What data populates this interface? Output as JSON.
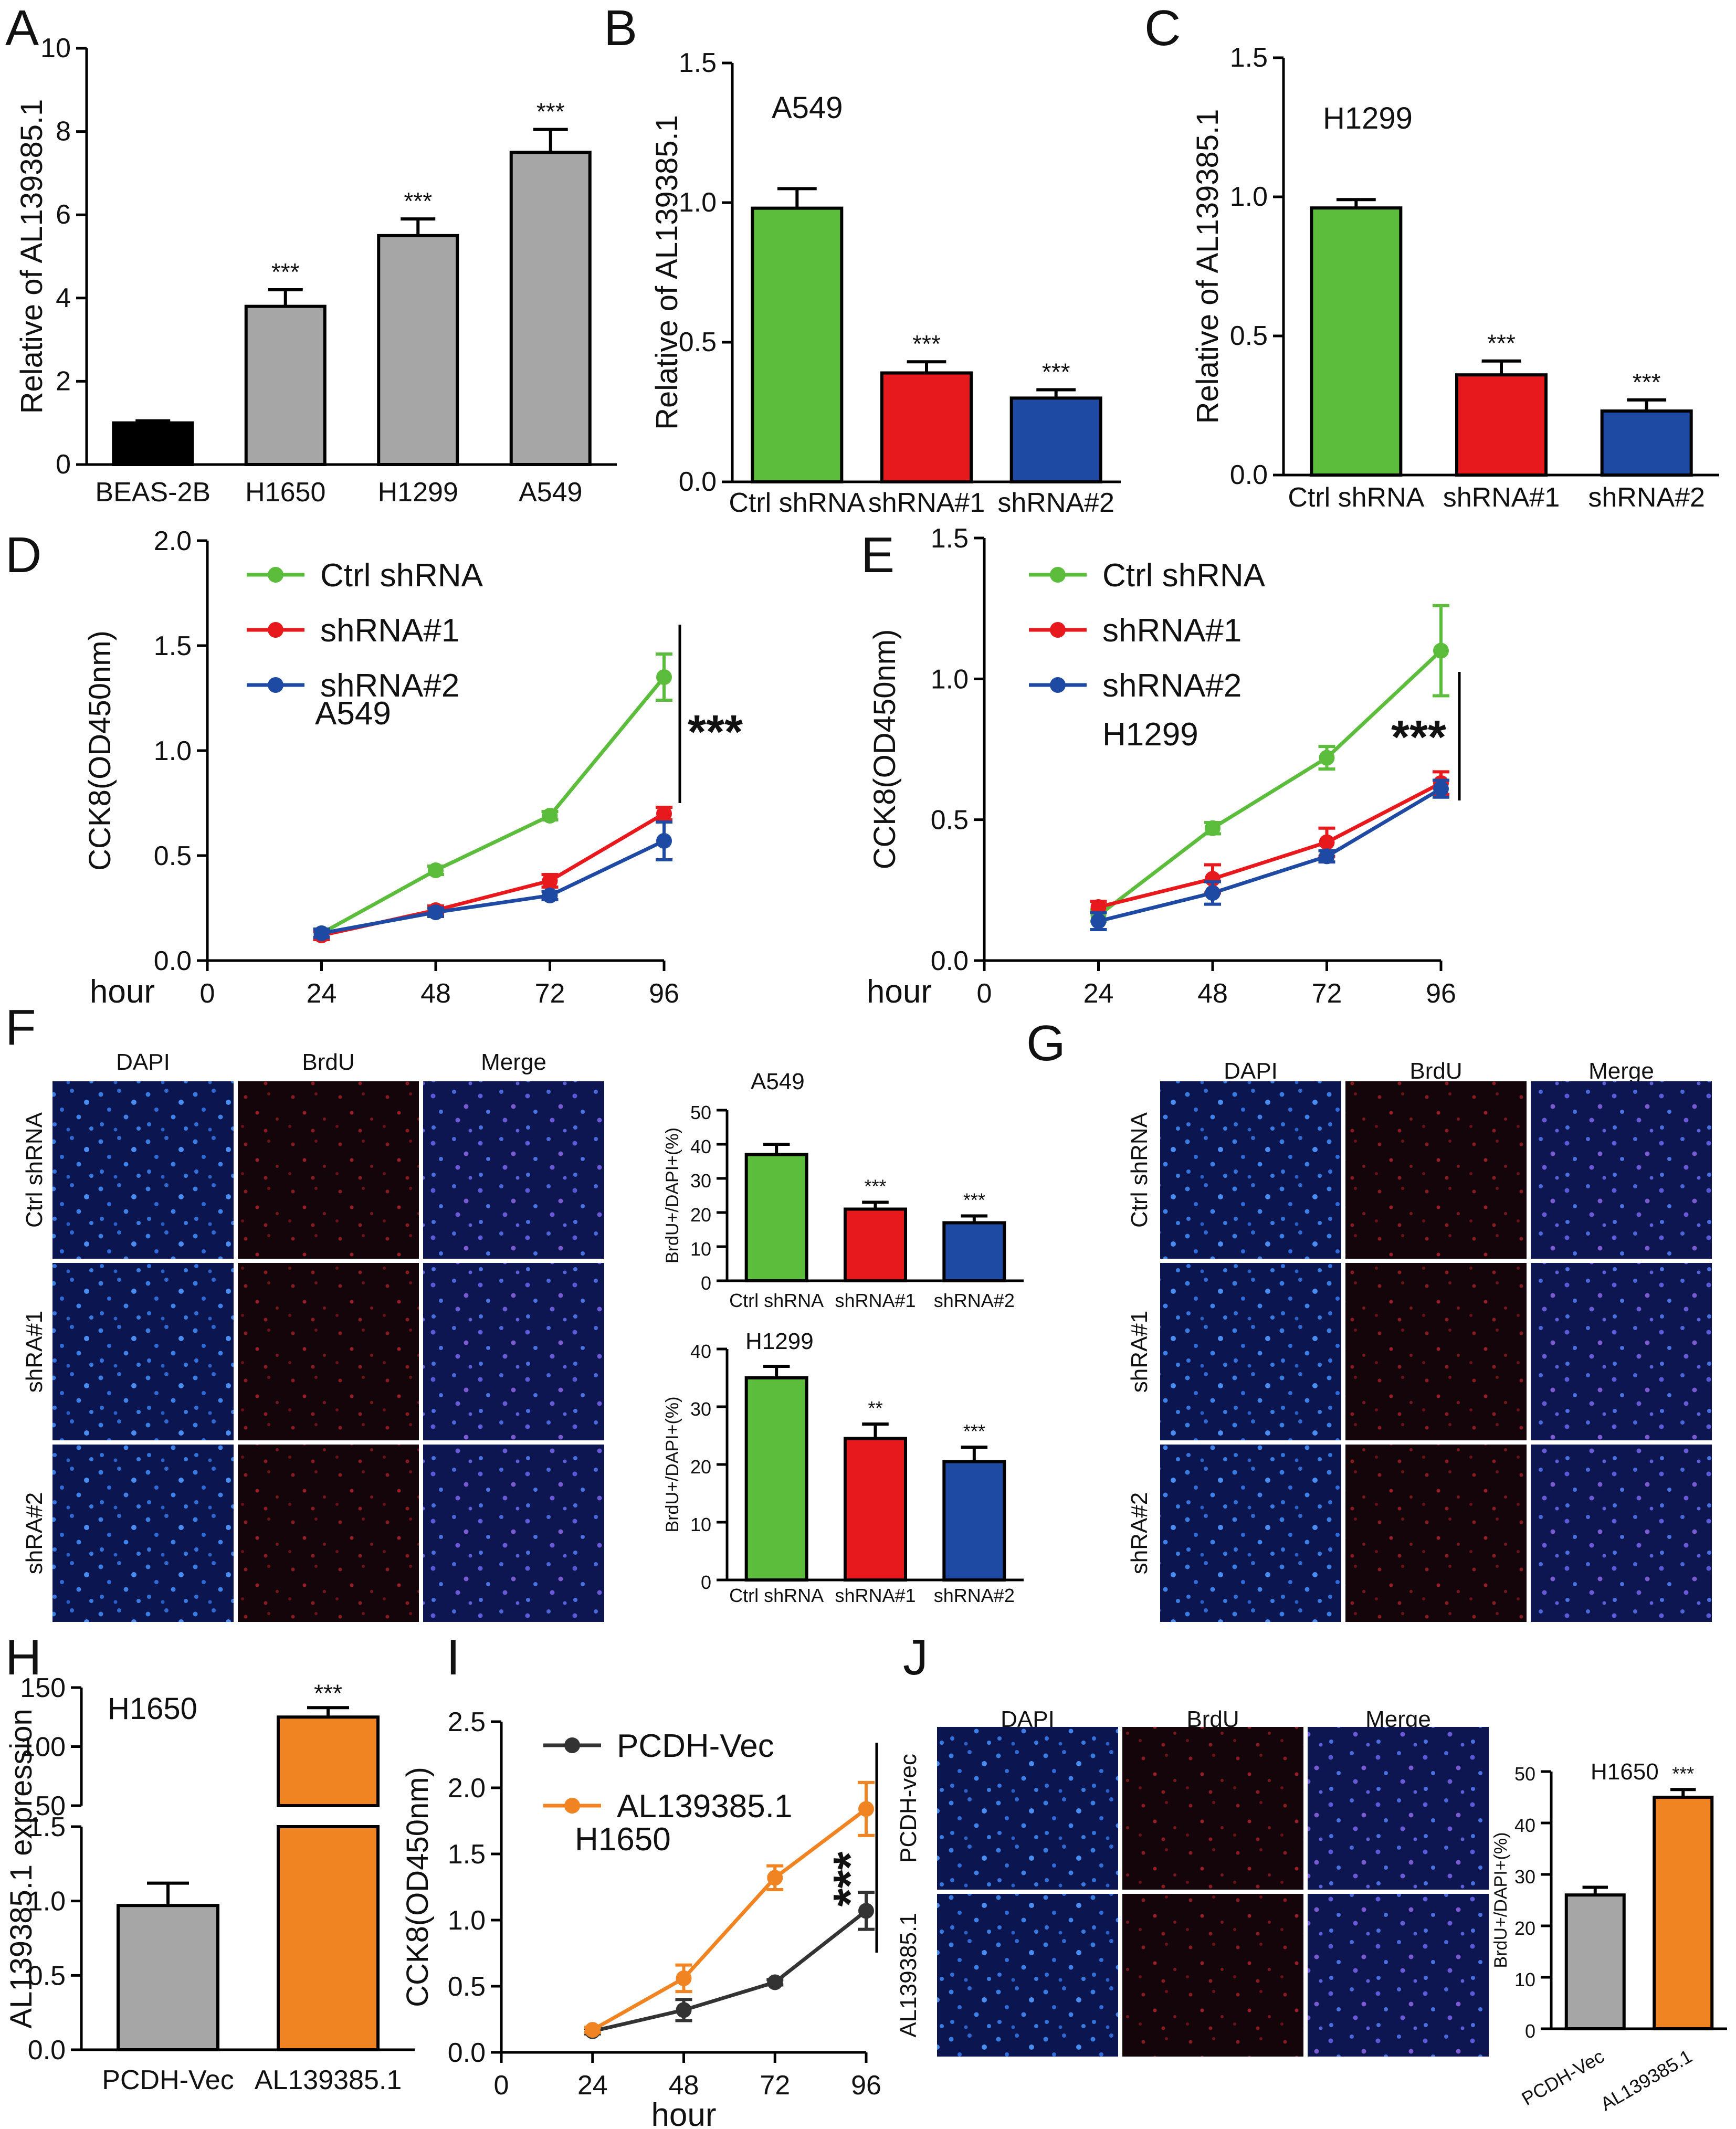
{
  "chart_data": [
    {
      "id": "A",
      "type": "bar",
      "panel": "A",
      "ylabel": "Relative of AL139385.1",
      "ylim": [
        0,
        10
      ],
      "yticks": [
        0,
        2,
        4,
        6,
        8,
        10
      ],
      "categories": [
        "BEAS-2B",
        "H1650",
        "H1299",
        "A549"
      ],
      "values": [
        1.0,
        3.8,
        5.5,
        7.5
      ],
      "errors": [
        0.05,
        0.4,
        0.4,
        0.55
      ],
      "significance": [
        "",
        "***",
        "***",
        "***"
      ],
      "colors": [
        "#000000",
        "#a6a6a6",
        "#a6a6a6",
        "#a6a6a6"
      ]
    },
    {
      "id": "B",
      "type": "bar",
      "panel": "B",
      "title": "A549",
      "ylabel": "Relative of AL139385.1",
      "ylim": [
        0,
        1.5
      ],
      "yticks": [
        "0.0",
        "0.5",
        "1.0",
        "1.5"
      ],
      "categories": [
        "Ctrl shRNA",
        "shRNA#1",
        "shRNA#2"
      ],
      "values": [
        0.98,
        0.39,
        0.3
      ],
      "errors": [
        0.07,
        0.04,
        0.03
      ],
      "significance": [
        "",
        "***",
        "***"
      ],
      "colors": [
        "#5cbd3c",
        "#e8191d",
        "#1f4aa3"
      ]
    },
    {
      "id": "C",
      "type": "bar",
      "panel": "C",
      "title": "H1299",
      "ylabel": "Relative of AL139385.1",
      "ylim": [
        0,
        1.5
      ],
      "yticks": [
        "0.0",
        "0.5",
        "1.0",
        "1.5"
      ],
      "categories": [
        "Ctrl shRNA",
        "shRNA#1",
        "shRNA#2"
      ],
      "values": [
        0.96,
        0.36,
        0.23
      ],
      "errors": [
        0.03,
        0.05,
        0.04
      ],
      "significance": [
        "",
        "***",
        "***"
      ],
      "colors": [
        "#5cbd3c",
        "#e8191d",
        "#1f4aa3"
      ]
    },
    {
      "id": "D",
      "type": "line",
      "panel": "D",
      "title": "A549",
      "xlabel": "hour",
      "ylabel": "CCK8(OD450nm)",
      "ylim": [
        0,
        2.0
      ],
      "yticks": [
        "0.0",
        "0.5",
        "1.0",
        "1.5",
        "2.0"
      ],
      "x": [
        24,
        48,
        72,
        96
      ],
      "xticks": [
        "0",
        "24",
        "48",
        "72",
        "96"
      ],
      "significance": "***",
      "series": [
        {
          "name": "Ctrl shRNA",
          "color": "#5cbd3c",
          "values": [
            0.13,
            0.43,
            0.69,
            1.35
          ],
          "errors": [
            0.02,
            0.02,
            0.02,
            0.11
          ]
        },
        {
          "name": "shRNA#1",
          "color": "#e8191d",
          "values": [
            0.12,
            0.24,
            0.38,
            0.7
          ],
          "errors": [
            0.02,
            0.02,
            0.03,
            0.03
          ]
        },
        {
          "name": "shRNA#2",
          "color": "#1f4aa3",
          "values": [
            0.13,
            0.23,
            0.31,
            0.57
          ],
          "errors": [
            0.02,
            0.02,
            0.02,
            0.09
          ]
        }
      ]
    },
    {
      "id": "E",
      "type": "line",
      "panel": "E",
      "title": "H1299",
      "xlabel": "hour",
      "ylabel": "CCK8(OD450nm)",
      "ylim": [
        0,
        1.5
      ],
      "yticks": [
        "0.0",
        "0.5",
        "1.0",
        "1.5"
      ],
      "x": [
        24,
        48,
        72,
        96
      ],
      "xticks": [
        "0",
        "24",
        "48",
        "72",
        "96"
      ],
      "significance": "***",
      "series": [
        {
          "name": "Ctrl shRNA",
          "color": "#5cbd3c",
          "values": [
            0.16,
            0.47,
            0.72,
            1.1
          ],
          "errors": [
            0.02,
            0.02,
            0.04,
            0.16
          ]
        },
        {
          "name": "shRNA#1",
          "color": "#e8191d",
          "values": [
            0.19,
            0.29,
            0.42,
            0.63
          ],
          "errors": [
            0.02,
            0.05,
            0.05,
            0.04
          ]
        },
        {
          "name": "shRNA#2",
          "color": "#1f4aa3",
          "values": [
            0.14,
            0.24,
            0.37,
            0.61
          ],
          "errors": [
            0.03,
            0.04,
            0.02,
            0.03
          ]
        }
      ]
    },
    {
      "id": "F1",
      "type": "bar",
      "panel": "F",
      "title": "A549",
      "ylabel": "BrdU+/DAPI+(%)",
      "ylim": [
        0,
        50
      ],
      "yticks": [
        "0",
        "10",
        "20",
        "30",
        "40",
        "50"
      ],
      "categories": [
        "Ctrl shRNA",
        "shRNA#1",
        "shRNA#2"
      ],
      "values": [
        37,
        21,
        17
      ],
      "errors": [
        3,
        2,
        2
      ],
      "significance": [
        "",
        "***",
        "***"
      ],
      "colors": [
        "#5cbd3c",
        "#e8191d",
        "#1f4aa3"
      ]
    },
    {
      "id": "F2",
      "type": "bar",
      "panel": "F",
      "title": "H1299",
      "ylabel": "BrdU+/DAPI+(%)",
      "ylim": [
        0,
        40
      ],
      "yticks": [
        "0",
        "10",
        "20",
        "30",
        "40"
      ],
      "categories": [
        "Ctrl shRNA",
        "shRNA#1",
        "shRNA#2"
      ],
      "values": [
        35,
        24.5,
        20.5
      ],
      "errors": [
        2,
        2.5,
        2.5
      ],
      "significance": [
        "",
        "**",
        "***"
      ],
      "colors": [
        "#5cbd3c",
        "#e8191d",
        "#1f4aa3"
      ]
    },
    {
      "id": "H",
      "type": "bar",
      "panel": "H",
      "title": "H1650",
      "ylabel": "AL139385.1 expression",
      "axis_break": true,
      "yticks_upper": [
        "50",
        "100",
        "150"
      ],
      "yticks_lower": [
        "0.0",
        "0.5",
        "1.0",
        "1.5"
      ],
      "categories": [
        "PCDH-Vec",
        "AL139385.1"
      ],
      "values": [
        0.97,
        125
      ],
      "errors": [
        0.15,
        8
      ],
      "significance": [
        "",
        "***"
      ],
      "colors": [
        "#a6a6a6",
        "#f08422"
      ]
    },
    {
      "id": "I",
      "type": "line",
      "panel": "I",
      "title": "H1650",
      "xlabel": "hour",
      "ylabel": "CCK8(OD450nm)",
      "ylim": [
        0,
        2.5
      ],
      "yticks": [
        "0.0",
        "0.5",
        "1.0",
        "1.5",
        "2.0",
        "2.5"
      ],
      "x": [
        24,
        48,
        72,
        96
      ],
      "xticks": [
        "0",
        "24",
        "48",
        "72",
        "96"
      ],
      "significance": "***",
      "series": [
        {
          "name": "PCDH-Vec",
          "color": "#333333",
          "values": [
            0.16,
            0.32,
            0.53,
            1.07
          ],
          "errors": [
            0.02,
            0.08,
            0.02,
            0.14
          ]
        },
        {
          "name": "AL139385.1",
          "color": "#f08422",
          "values": [
            0.17,
            0.56,
            1.32,
            1.84
          ],
          "errors": [
            0.02,
            0.1,
            0.09,
            0.2
          ]
        }
      ]
    },
    {
      "id": "J",
      "type": "bar",
      "panel": "J",
      "title": "H1650",
      "ylabel": "BrdU+/DAPI+(%)",
      "ylim": [
        0,
        50
      ],
      "yticks": [
        "0",
        "10",
        "20",
        "30",
        "40",
        "50"
      ],
      "categories": [
        "PCDH-Vec",
        "AL139385.1"
      ],
      "values": [
        26,
        45
      ],
      "errors": [
        1.5,
        1.5
      ],
      "significance": [
        "",
        "***"
      ],
      "colors": [
        "#a6a6a6",
        "#f08422"
      ]
    }
  ],
  "micrographs": {
    "F": {
      "columns": [
        "DAPI",
        "BrdU",
        "Merge"
      ],
      "rows": [
        "Ctrl shRNA",
        "shRA#1",
        "shRA#2"
      ]
    },
    "G": {
      "columns": [
        "DAPI",
        "BrdU",
        "Merge"
      ],
      "rows": [
        "Ctrl shRNA",
        "shRA#1",
        "shRA#2"
      ]
    },
    "J": {
      "columns": [
        "DAPI",
        "BrdU",
        "Merge"
      ],
      "rows": [
        "PCDH-vec",
        "AL139385.1"
      ]
    }
  },
  "colors": {
    "dapi": "#0a1a5c",
    "brdu": "#1a0508",
    "merge": "#101a56"
  }
}
